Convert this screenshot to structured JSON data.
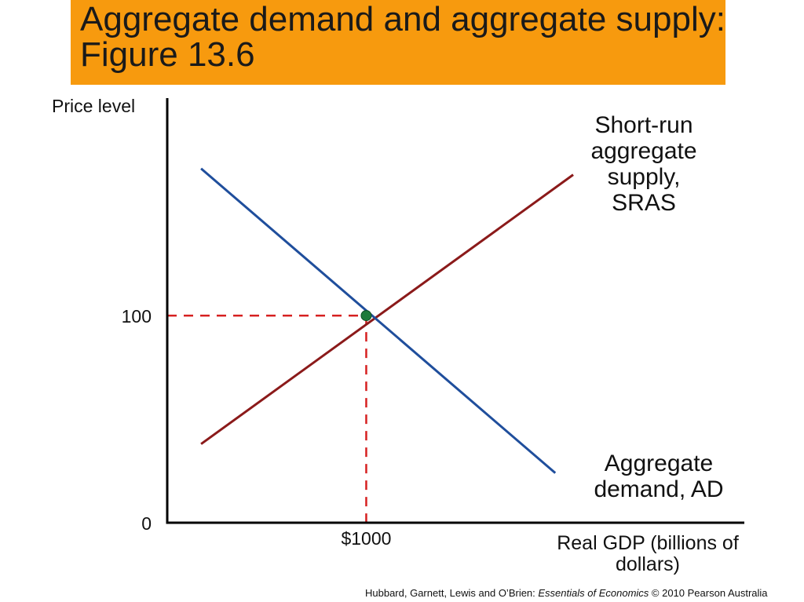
{
  "title": "Aggregate demand and aggregate supply: Figure 13.6",
  "footer": {
    "authors": "Hubbard, Garnett, Lewis and O’Brien: ",
    "book": "Essentials of Economics",
    "rest": " © 2010 Pearson Australia"
  },
  "colors": {
    "title_bg": "#f79a0e",
    "ad_line": "#1f4e9c",
    "sras_line": "#8b1a1a",
    "guide_lines": "#d62020",
    "equilibrium_point": "#1e7a3a",
    "axes": "#000000"
  },
  "chart_data": {
    "type": "line",
    "ylabel": "Price level",
    "xlabel": "Real GDP (billions of dollars)",
    "x_ticks": [
      {
        "value": 1000,
        "label": "$1000"
      }
    ],
    "y_ticks": [
      {
        "value": 0,
        "label": "0"
      },
      {
        "value": 100,
        "label": "100"
      }
    ],
    "series": [
      {
        "name": "Short-run aggregate supply, SRAS",
        "label_lines": [
          "Short-run",
          "aggregate",
          "supply,",
          "SRAS"
        ],
        "points": [
          [
            170,
            38
          ],
          [
            2040,
            168
          ]
        ]
      },
      {
        "name": "Aggregate demand, AD",
        "label_lines": [
          "Aggregate",
          "demand, AD"
        ],
        "points": [
          [
            170,
            171
          ],
          [
            1950,
            24
          ]
        ]
      }
    ],
    "equilibrium": {
      "x": 1000,
      "y": 100
    },
    "xlim": [
      0,
      2900
    ],
    "ylim": [
      0,
      205
    ],
    "grid": false,
    "legend": "none"
  }
}
